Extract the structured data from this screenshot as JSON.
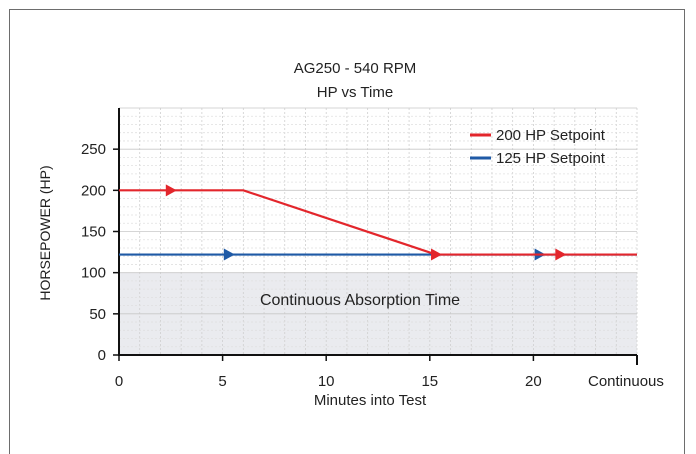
{
  "chart_data": {
    "type": "line",
    "title": "AG250 - 540 RPM",
    "subtitle": "HP vs Time",
    "xlabel": "Minutes into Test",
    "ylabel": "HORSEPOWER (HP)",
    "xlim": [
      0,
      25
    ],
    "ylim": [
      0,
      300
    ],
    "x_ticks": [
      0,
      5,
      10,
      15,
      20
    ],
    "x_tick_labels": [
      "0",
      "5",
      "10",
      "15",
      "20"
    ],
    "x_end_label": "Continuous",
    "y_ticks": [
      0,
      50,
      100,
      150,
      200,
      250
    ],
    "y_tick_labels": [
      "0",
      "50",
      "100",
      "150",
      "200",
      "250"
    ],
    "grid": true,
    "legend_position": "top-right",
    "series": [
      {
        "name": "200 HP Setpoint",
        "color": "#e3262c",
        "x": [
          0,
          6,
          15.3,
          25
        ],
        "y": [
          200,
          200,
          122,
          122
        ],
        "arrow_markers_x": [
          2.5,
          15.3,
          21.3
        ]
      },
      {
        "name": "125 HP Setpoint",
        "color": "#1f5aa6",
        "x": [
          0,
          25
        ],
        "y": [
          122,
          122
        ],
        "arrow_markers_x": [
          5.3,
          20.3
        ]
      }
    ],
    "shaded_region": {
      "label": "Continuous Absorption Time",
      "y_range": [
        0,
        100
      ],
      "color": "#eaebef"
    }
  }
}
